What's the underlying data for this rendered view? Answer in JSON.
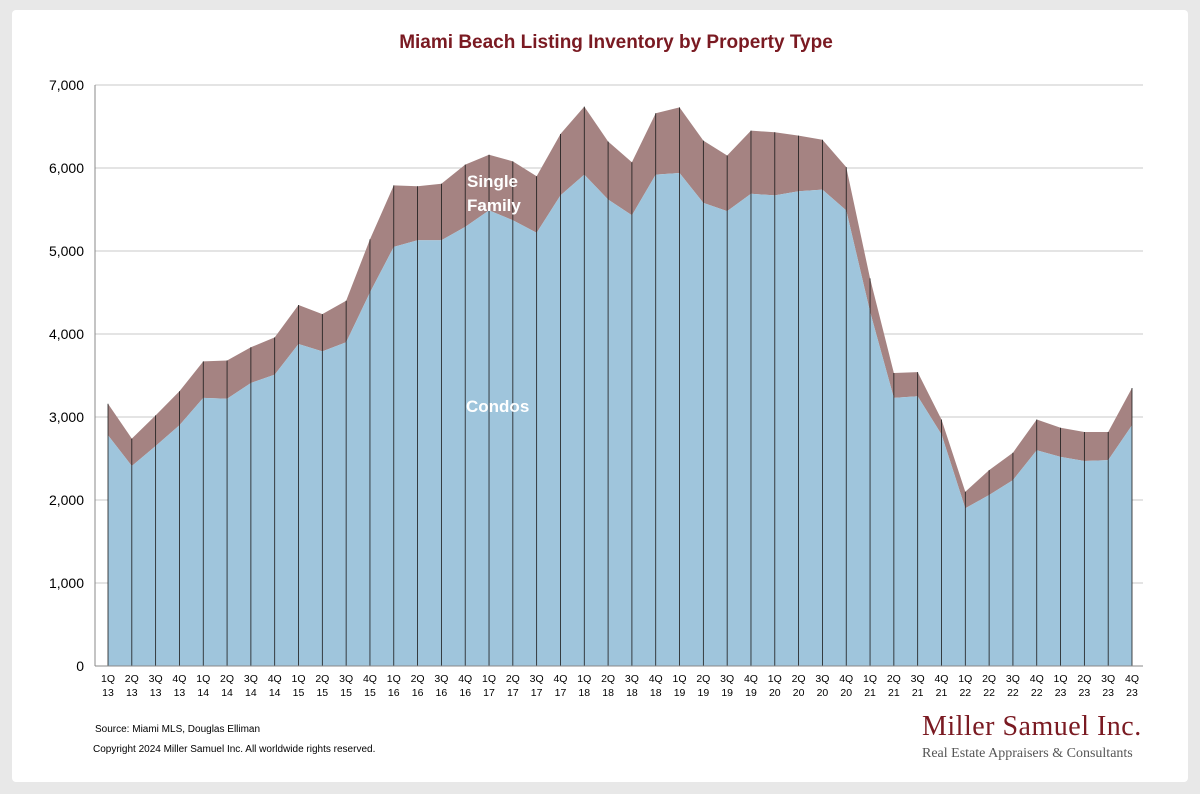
{
  "chart_data": {
    "type": "area",
    "stacked": true,
    "title": "Miami Beach Listing Inventory by Property Type",
    "xlabel": "",
    "ylabel": "",
    "ylim": [
      0,
      7000
    ],
    "yticks": [
      0,
      1000,
      2000,
      3000,
      4000,
      5000,
      6000,
      7000
    ],
    "ytick_labels": [
      "0",
      "1,000",
      "2,000",
      "3,000",
      "4,000",
      "5,000",
      "6,000",
      "7,000"
    ],
    "grid": "horizontal",
    "categories": [
      [
        "1Q",
        "13"
      ],
      [
        "2Q",
        "13"
      ],
      [
        "3Q",
        "13"
      ],
      [
        "4Q",
        "13"
      ],
      [
        "1Q",
        "14"
      ],
      [
        "2Q",
        "14"
      ],
      [
        "3Q",
        "14"
      ],
      [
        "4Q",
        "14"
      ],
      [
        "1Q",
        "15"
      ],
      [
        "2Q",
        "15"
      ],
      [
        "3Q",
        "15"
      ],
      [
        "4Q",
        "15"
      ],
      [
        "1Q",
        "16"
      ],
      [
        "2Q",
        "16"
      ],
      [
        "3Q",
        "16"
      ],
      [
        "4Q",
        "16"
      ],
      [
        "1Q",
        "17"
      ],
      [
        "2Q",
        "17"
      ],
      [
        "3Q",
        "17"
      ],
      [
        "4Q",
        "17"
      ],
      [
        "1Q",
        "18"
      ],
      [
        "2Q",
        "18"
      ],
      [
        "3Q",
        "18"
      ],
      [
        "4Q",
        "18"
      ],
      [
        "1Q",
        "19"
      ],
      [
        "2Q",
        "19"
      ],
      [
        "3Q",
        "19"
      ],
      [
        "4Q",
        "19"
      ],
      [
        "1Q",
        "20"
      ],
      [
        "2Q",
        "20"
      ],
      [
        "3Q",
        "20"
      ],
      [
        "4Q",
        "20"
      ],
      [
        "1Q",
        "21"
      ],
      [
        "2Q",
        "21"
      ],
      [
        "3Q",
        "21"
      ],
      [
        "4Q",
        "21"
      ],
      [
        "1Q",
        "22"
      ],
      [
        "2Q",
        "22"
      ],
      [
        "3Q",
        "22"
      ],
      [
        "4Q",
        "22"
      ],
      [
        "1Q",
        "23"
      ],
      [
        "2Q",
        "23"
      ],
      [
        "3Q",
        "23"
      ],
      [
        "4Q",
        "23"
      ]
    ],
    "series": [
      {
        "name": "Condos",
        "label": "Condos",
        "color": "#9fc5dc",
        "values": [
          2780,
          2410,
          2650,
          2900,
          3230,
          3220,
          3410,
          3510,
          3880,
          3790,
          3900,
          4500,
          5050,
          5130,
          5130,
          5290,
          5490,
          5370,
          5220,
          5670,
          5920,
          5620,
          5430,
          5920,
          5940,
          5580,
          5480,
          5690,
          5670,
          5720,
          5740,
          5490,
          4270,
          3230,
          3250,
          2790,
          1900,
          2060,
          2240,
          2600,
          2520,
          2470,
          2480,
          2900
        ]
      },
      {
        "name": "Single Family",
        "label_line1": "Single",
        "label_line2": "Family",
        "color": "#a58382",
        "values": [
          380,
          330,
          370,
          410,
          440,
          460,
          430,
          450,
          470,
          450,
          500,
          640,
          740,
          650,
          680,
          750,
          670,
          710,
          680,
          740,
          820,
          700,
          640,
          740,
          790,
          750,
          670,
          760,
          760,
          670,
          600,
          520,
          400,
          300,
          290,
          180,
          200,
          300,
          330,
          370,
          350,
          350,
          340,
          450
        ]
      }
    ]
  },
  "footer": {
    "source": "Source: Miami MLS, Douglas Elliman",
    "copyright": "Copyright 2024 Miller Samuel Inc.  All worldwide rights reserved."
  },
  "brand": {
    "name": "Miller Samuel Inc.",
    "tagline": "Real Estate Appraisers & Consultants"
  },
  "colors": {
    "title": "#7a1a22",
    "grid": "#c8c8c8",
    "divider": "#1a1a1a"
  }
}
